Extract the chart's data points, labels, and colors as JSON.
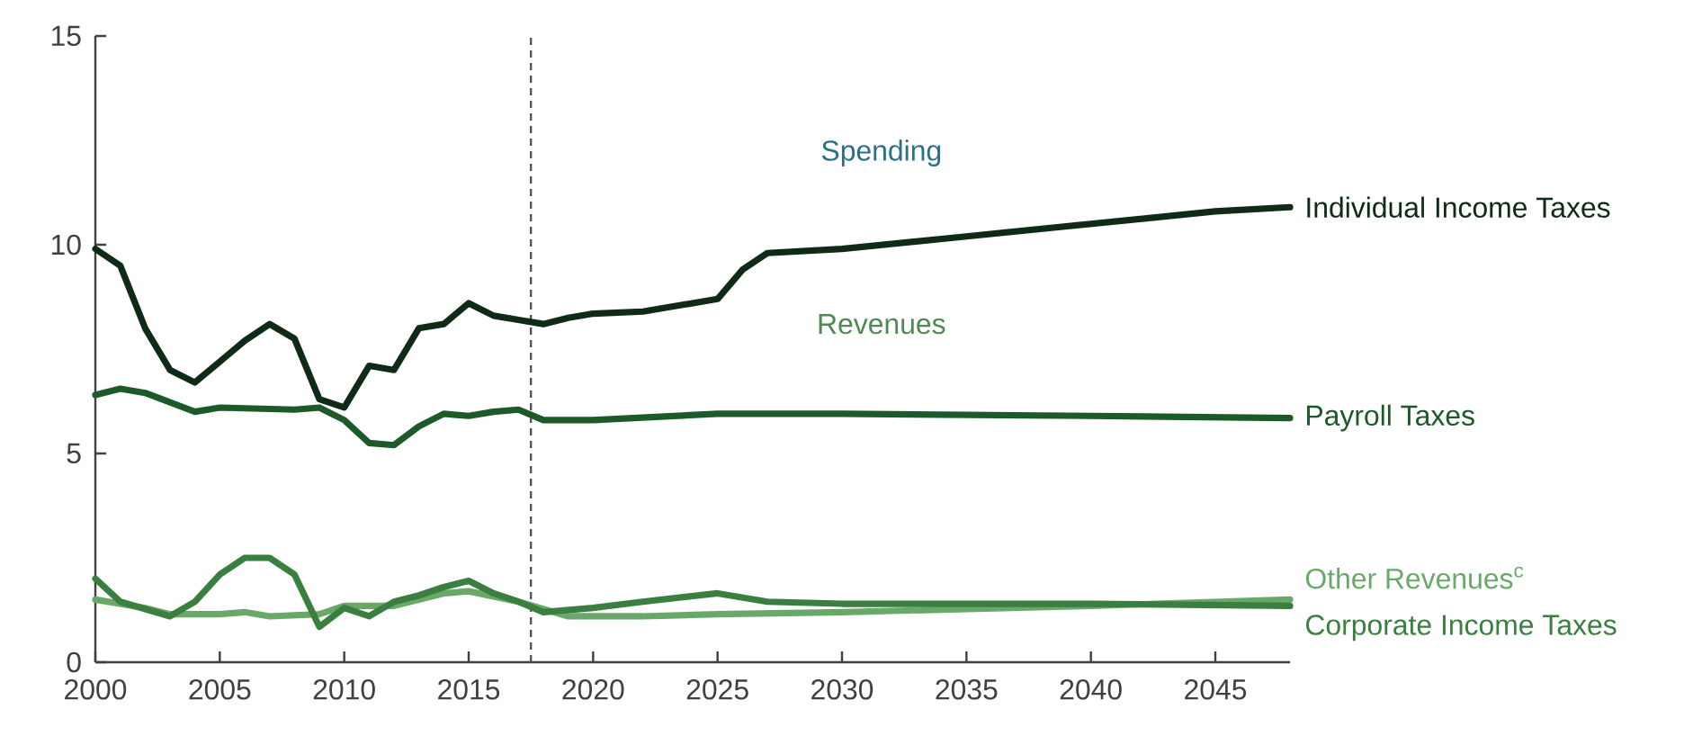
{
  "chart_data": {
    "type": "line",
    "xlim": [
      2000,
      2048
    ],
    "ylim": [
      0,
      15
    ],
    "xticks": [
      2000,
      2005,
      2010,
      2015,
      2020,
      2025,
      2030,
      2035,
      2040,
      2045
    ],
    "yticks": [
      0,
      5,
      10,
      15
    ],
    "grid": false,
    "marker": "none",
    "line_style": "solid",
    "annotations": [
      "Spending",
      "Revenues"
    ],
    "ref_lines": [
      {
        "axis": "x",
        "value": 2017.5,
        "color": "#555555",
        "line_style": "dashed"
      }
    ],
    "series": [
      {
        "name": "Individual Income Taxes",
        "color": "#0f2a17",
        "x": [
          2000,
          2001,
          2002,
          2003,
          2004,
          2005,
          2006,
          2007,
          2008,
          2009,
          2010,
          2011,
          2012,
          2013,
          2014,
          2015,
          2016,
          2017,
          2018,
          2019,
          2020,
          2022,
          2025,
          2026,
          2027,
          2030,
          2035,
          2040,
          2045,
          2048
        ],
        "values": [
          9.9,
          9.5,
          8.0,
          7.0,
          6.7,
          7.2,
          7.7,
          8.1,
          7.75,
          6.3,
          6.1,
          7.1,
          7.0,
          8.0,
          8.1,
          8.6,
          8.3,
          8.2,
          8.1,
          8.25,
          8.35,
          8.4,
          8.7,
          9.4,
          9.8,
          9.9,
          10.2,
          10.5,
          10.8,
          10.9
        ]
      },
      {
        "name": "Payroll Taxes",
        "color": "#1d5a2a",
        "x": [
          2000,
          2001,
          2002,
          2004,
          2005,
          2008,
          2009,
          2010,
          2011,
          2012,
          2013,
          2014,
          2015,
          2016,
          2017,
          2018,
          2020,
          2025,
          2030,
          2040,
          2048
        ],
        "values": [
          6.4,
          6.55,
          6.45,
          6.0,
          6.1,
          6.05,
          6.1,
          5.8,
          5.25,
          5.2,
          5.65,
          5.95,
          5.9,
          6.0,
          6.05,
          5.8,
          5.8,
          5.95,
          5.95,
          5.9,
          5.85
        ]
      },
      {
        "name": "Other Revenues$^{c}$",
        "color": "#6aa86a",
        "x": [
          2000,
          2002,
          2003,
          2005,
          2006,
          2007,
          2009,
          2010,
          2012,
          2014,
          2015,
          2017,
          2019,
          2022,
          2025,
          2030,
          2040,
          2048
        ],
        "values": [
          1.5,
          1.3,
          1.15,
          1.15,
          1.2,
          1.1,
          1.15,
          1.35,
          1.35,
          1.65,
          1.7,
          1.45,
          1.1,
          1.1,
          1.15,
          1.2,
          1.35,
          1.5
        ]
      },
      {
        "name": "Corporate Income Taxes",
        "color": "#3a7f3f",
        "x": [
          2000,
          2001,
          2003,
          2004,
          2005,
          2006,
          2007,
          2008,
          2009,
          2010,
          2011,
          2012,
          2013,
          2014,
          2015,
          2016,
          2017,
          2018,
          2020,
          2022,
          2025,
          2027,
          2030,
          2035,
          2040,
          2048
        ],
        "values": [
          2.0,
          1.45,
          1.1,
          1.45,
          2.1,
          2.5,
          2.5,
          2.1,
          0.85,
          1.3,
          1.1,
          1.45,
          1.6,
          1.8,
          1.95,
          1.65,
          1.45,
          1.2,
          1.3,
          1.45,
          1.65,
          1.45,
          1.4,
          1.4,
          1.4,
          1.35
        ]
      }
    ]
  }
}
